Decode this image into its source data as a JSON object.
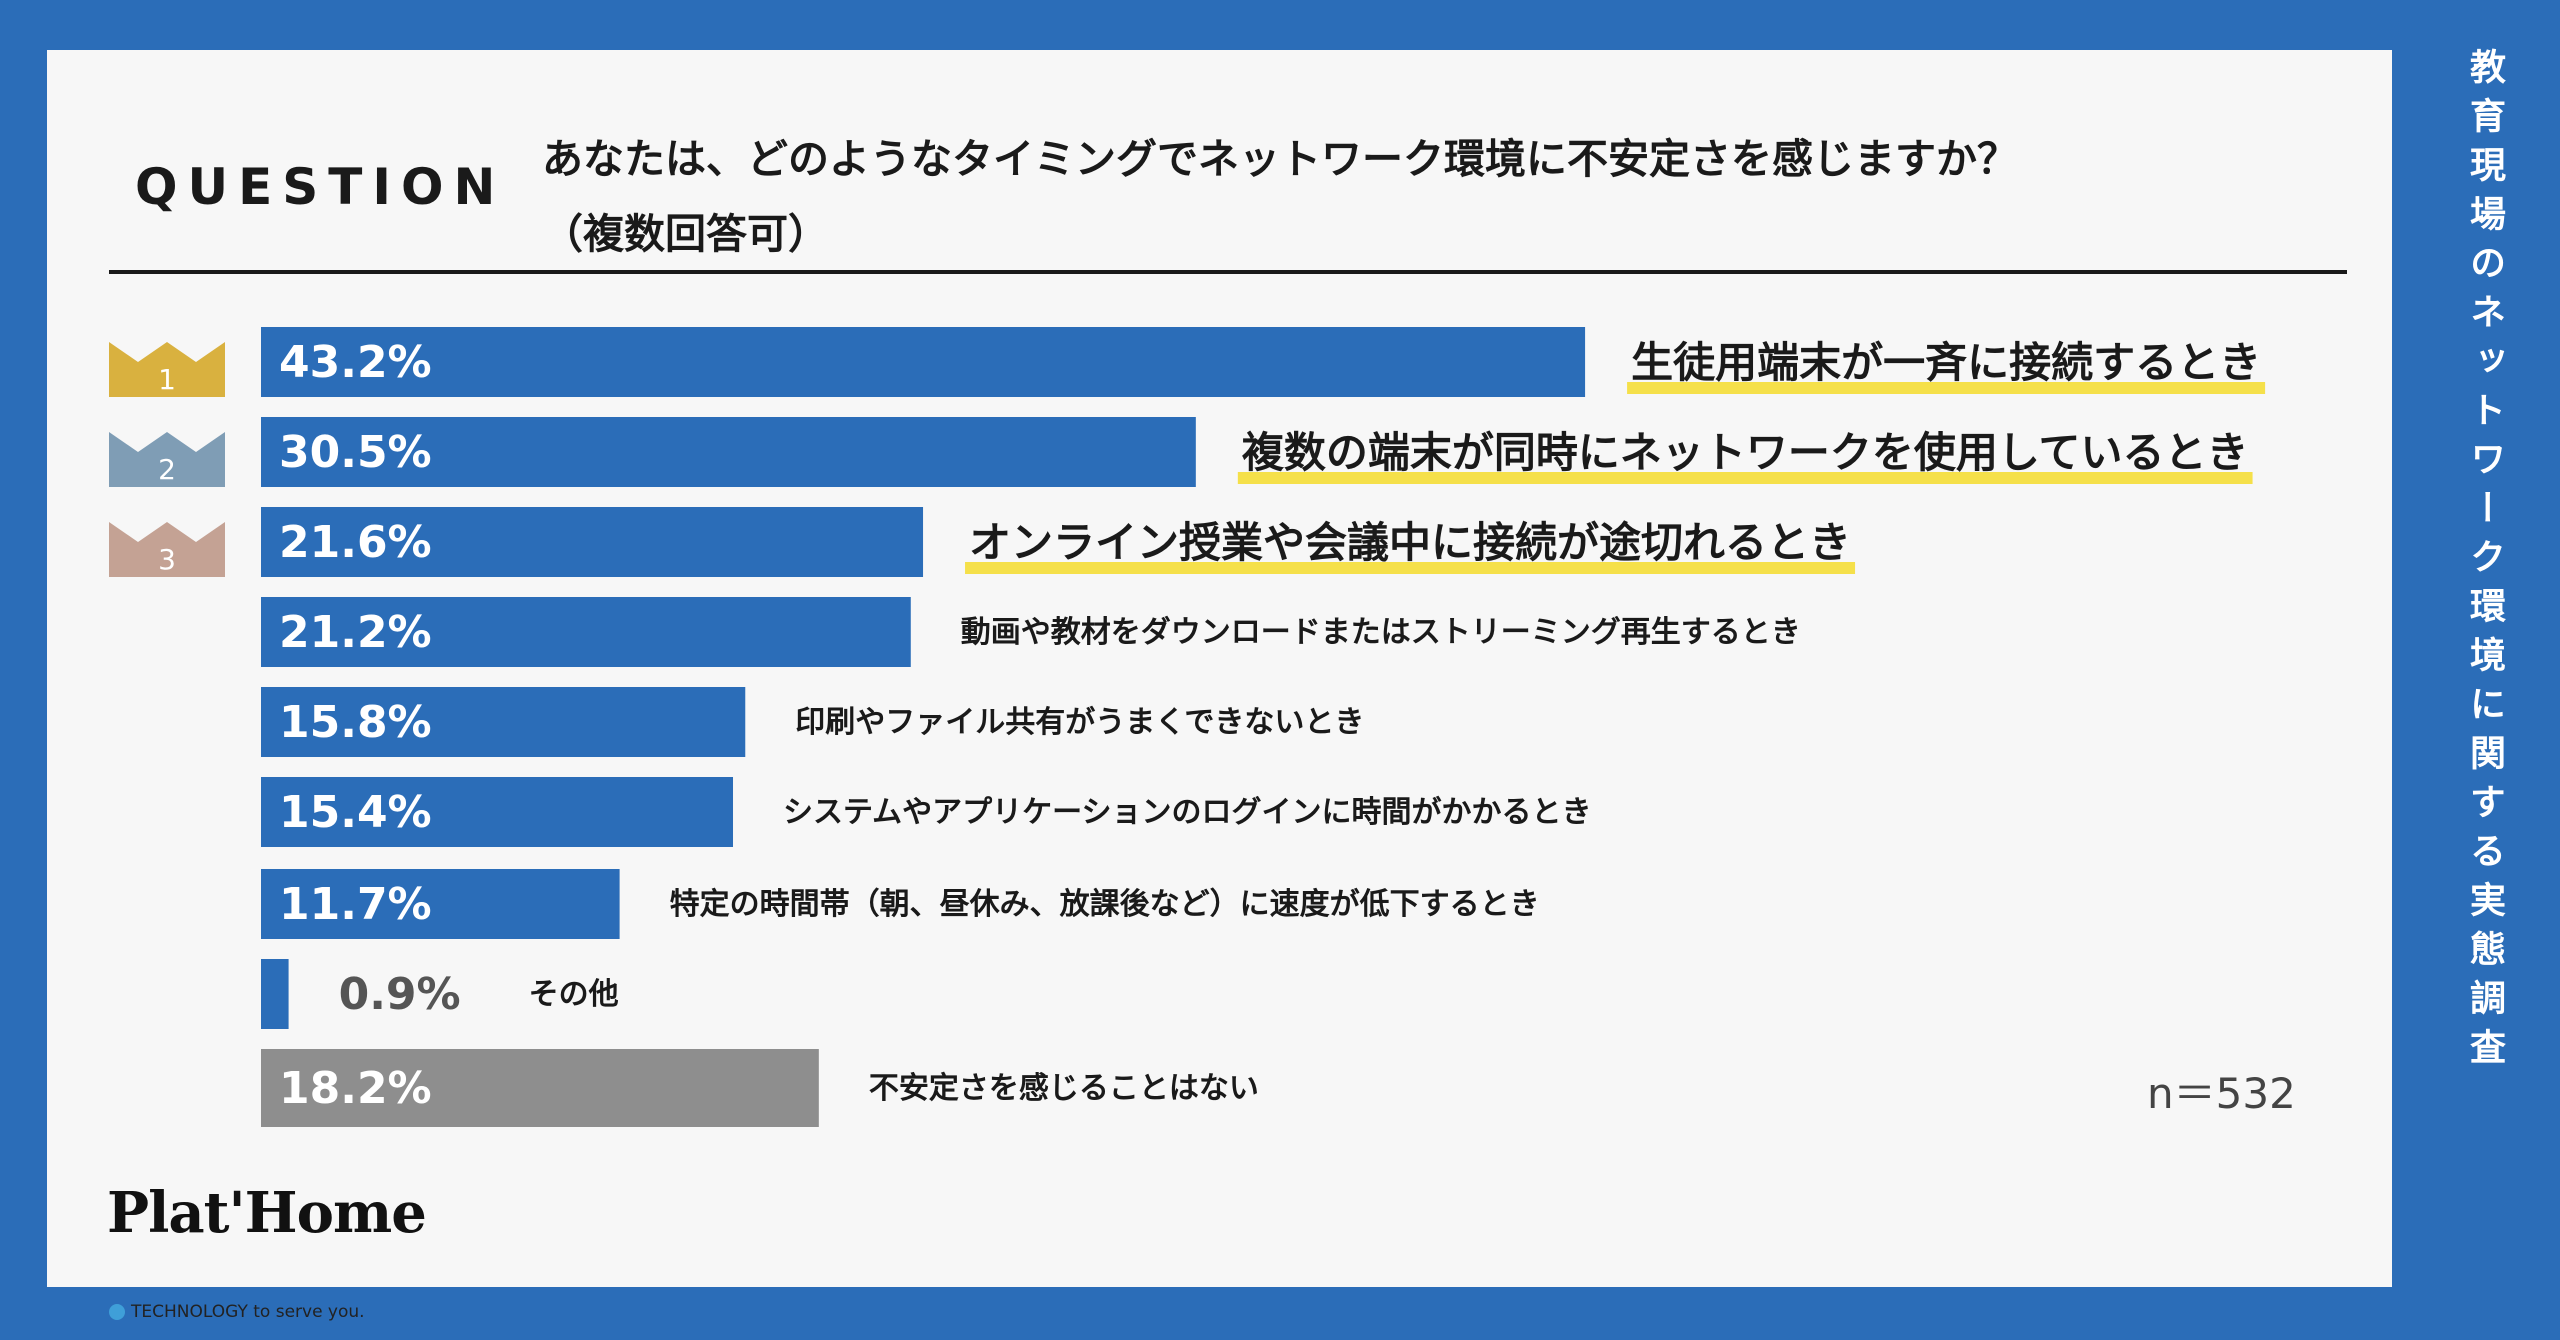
{
  "question": {
    "label": "QUESTION",
    "line1": "あなたは、どのようなタイミングでネットワーク環境に不安定さを感じますか？",
    "line2": "（複数回答可）"
  },
  "side_title": "教育現場のネットワーク環境に関する実態調査",
  "sample_size": "n＝532",
  "logo": {
    "name": "Plat'Home",
    "tagline": "TECHNOLOGY to serve you."
  },
  "colors": {
    "background": "#2b6db8",
    "bar": "#2b6db8",
    "bar_none": "#8e8e8e",
    "rank1": "#d9b13f",
    "rank2": "#7f9db5",
    "rank3": "#c4a294",
    "highlight": "#f5e04a"
  },
  "chart_data": {
    "type": "bar",
    "orientation": "horizontal",
    "unit": "%",
    "xlim": [
      0,
      50
    ],
    "categories": [
      "生徒用端末が一斉に接続するとき",
      "複数の端末が同時にネットワークを使用しているとき",
      "オンライン授業や会議中に接続が途切れるとき",
      "動画や教材をダウンロードまたはストリーミング再生するとき",
      "印刷やファイル共有がうまくできないとき",
      "システムやアプリケーションのログインに時間がかかるとき",
      "特定の時間帯（朝、昼休み、放課後など）に速度が低下するとき",
      "その他",
      "不安定さを感じることはない"
    ],
    "values": [
      43.2,
      30.5,
      21.6,
      21.2,
      15.8,
      15.4,
      11.7,
      0.9,
      18.2
    ],
    "value_labels": [
      "43.2%",
      "30.5%",
      "21.6%",
      "21.2%",
      "15.8%",
      "15.4%",
      "11.7%",
      "0.9%",
      "18.2%"
    ],
    "ranks": [
      "1",
      "2",
      "3"
    ]
  }
}
